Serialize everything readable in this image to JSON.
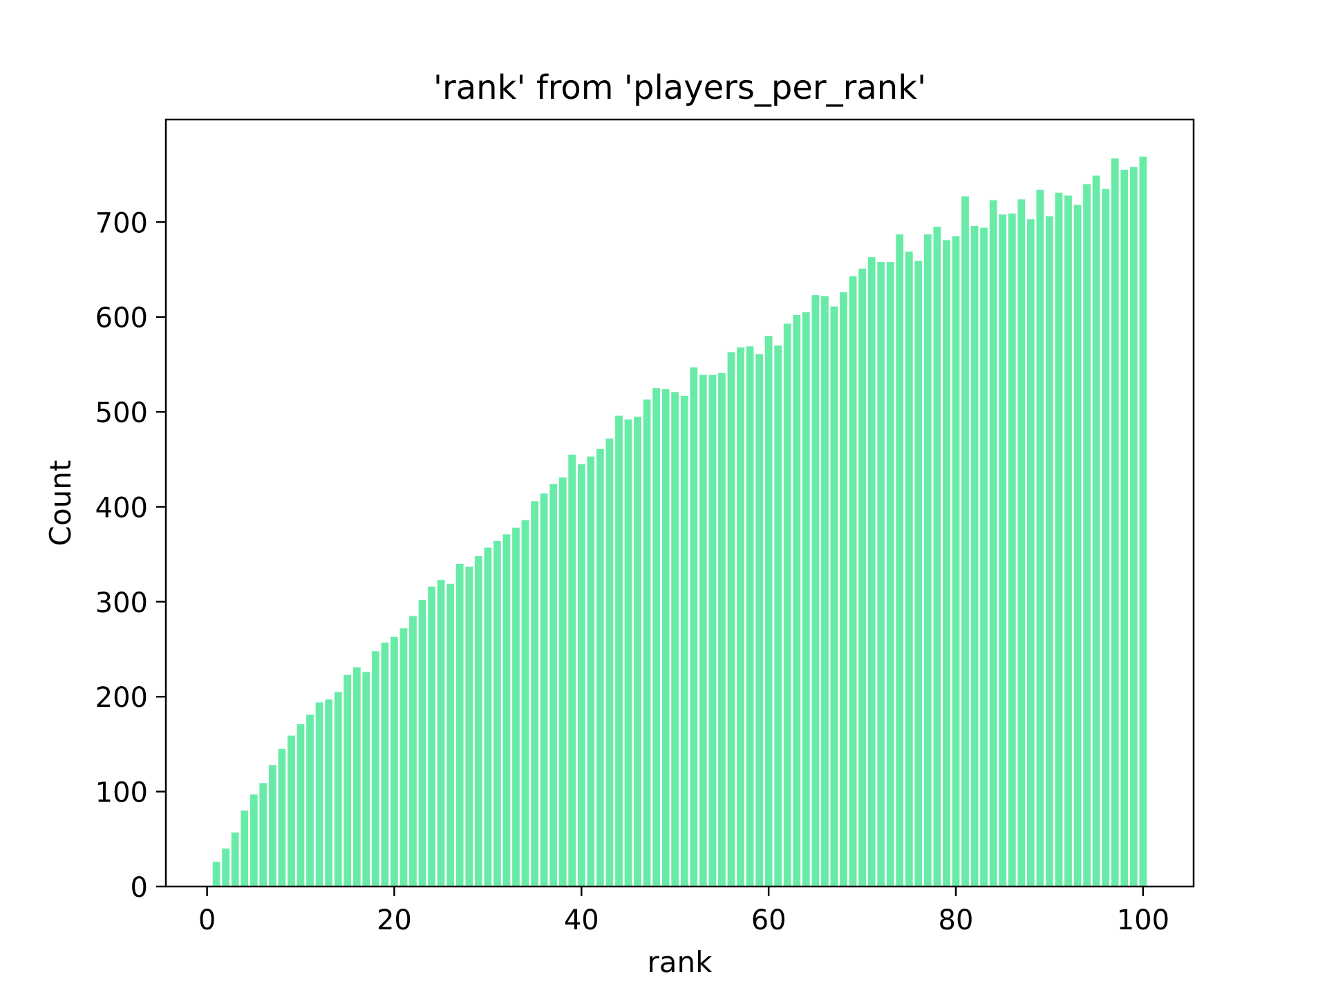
{
  "chart_data": {
    "type": "bar",
    "title": "'rank' from 'players_per_rank'",
    "xlabel": "rank",
    "ylabel": "Count",
    "bar_color": "#69eba8",
    "axis_color": "#000000",
    "grid": false,
    "legend": "none",
    "xlim": [
      -4.4,
      105.4
    ],
    "ylim": [
      0,
      808
    ],
    "bar_width": 0.8,
    "xticks": [
      0,
      20,
      40,
      60,
      80,
      100
    ],
    "yticks": [
      0,
      100,
      200,
      300,
      400,
      500,
      600,
      700
    ],
    "x": [
      1,
      2,
      3,
      4,
      5,
      6,
      7,
      8,
      9,
      10,
      11,
      12,
      13,
      14,
      15,
      16,
      17,
      18,
      19,
      20,
      21,
      22,
      23,
      24,
      25,
      26,
      27,
      28,
      29,
      30,
      31,
      32,
      33,
      34,
      35,
      36,
      37,
      38,
      39,
      40,
      41,
      42,
      43,
      44,
      45,
      46,
      47,
      48,
      49,
      50,
      51,
      52,
      53,
      54,
      55,
      56,
      57,
      58,
      59,
      60,
      61,
      62,
      63,
      64,
      65,
      66,
      67,
      68,
      69,
      70,
      71,
      72,
      73,
      74,
      75,
      76,
      77,
      78,
      79,
      80,
      81,
      82,
      83,
      84,
      85,
      86,
      87,
      88,
      89,
      90,
      91,
      92,
      93,
      94,
      95,
      96,
      97,
      98,
      99,
      100
    ],
    "values": [
      26,
      40,
      57,
      80,
      97,
      109,
      128,
      145,
      159,
      171,
      181,
      194,
      197,
      205,
      223,
      231,
      226,
      248,
      257,
      263,
      272,
      285,
      302,
      316,
      323,
      319,
      340,
      337,
      348,
      357,
      364,
      371,
      378,
      386,
      406,
      414,
      424,
      431,
      455,
      445,
      453,
      461,
      472,
      496,
      492,
      495,
      513,
      525,
      524,
      521,
      517,
      547,
      539,
      539,
      541,
      563,
      568,
      569,
      561,
      580,
      570,
      593,
      602,
      605,
      623,
      622,
      611,
      626,
      643,
      651,
      663,
      658,
      658,
      687,
      669,
      659,
      687,
      695,
      681,
      685,
      727,
      696,
      694,
      723,
      708,
      709,
      724,
      703,
      734,
      706,
      731,
      728,
      718,
      740,
      749,
      735,
      767,
      755,
      758,
      769
    ]
  }
}
